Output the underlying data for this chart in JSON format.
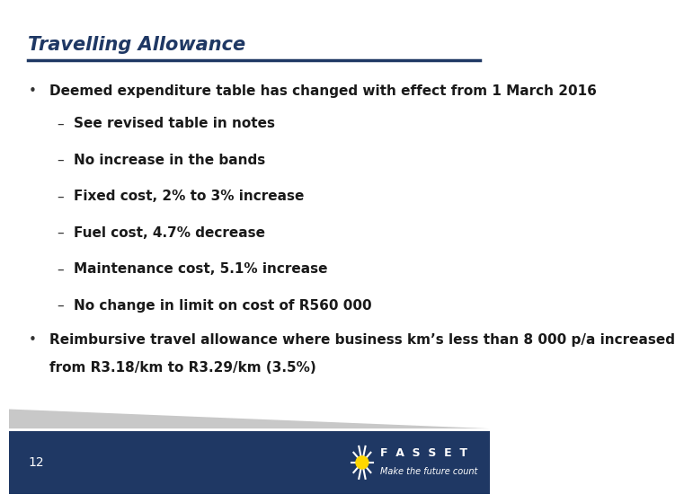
{
  "title": "Travelling Allowance",
  "title_color": "#1F3864",
  "title_fontsize": 15,
  "separator_color": "#1F3864",
  "bg_color": "#FFFFFF",
  "footer_bg_color": "#1F3864",
  "footer_gray_color": "#C8C8C8",
  "footer_number": "12",
  "footer_text": "F  A  S  S  E  T",
  "footer_subtext": "Make the future count",
  "bullet1": "Deemed expenditure table has changed with effect from 1 March 2016",
  "sub_bullets": [
    "See revised table in notes",
    "No increase in the bands",
    "Fixed cost, 2% to 3% increase",
    "Fuel cost, 4.7% decrease",
    "Maintenance cost, 5.1% increase",
    "No change in limit on cost of R560 000"
  ],
  "bullet2_line1": "Reimbursive travel allowance where business km’s less than 8 000 p/a increased",
  "bullet2_line2": "from R3.18/km to R3.29/km (3.5%)",
  "text_color": "#1a1a1a",
  "bullet_color": "#333333",
  "body_fontsize": 11,
  "sub_fontsize": 11
}
